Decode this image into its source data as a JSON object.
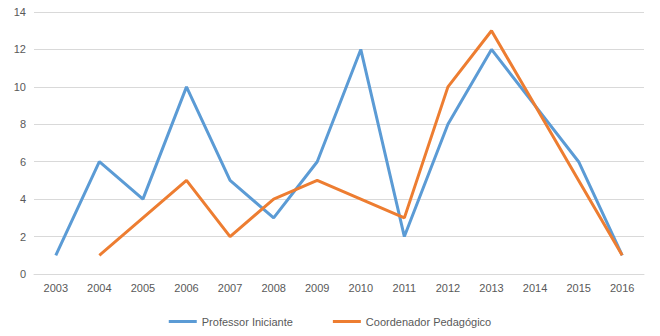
{
  "chart_data": {
    "type": "line",
    "categories": [
      "2003",
      "2004",
      "2005",
      "2006",
      "2007",
      "2008",
      "2009",
      "2010",
      "2011",
      "2012",
      "2013",
      "2014",
      "2015",
      "2016"
    ],
    "series": [
      {
        "name": "Professor Iniciante",
        "color": "#5b9bd5",
        "values": [
          1,
          6,
          4,
          10,
          5,
          3,
          6,
          12,
          2,
          8,
          12,
          9,
          6,
          1
        ]
      },
      {
        "name": "Coordenador Pedagógico",
        "color": "#ed7d31",
        "values": [
          null,
          1,
          3,
          5,
          2,
          4,
          5,
          4,
          3,
          10,
          13,
          9,
          5,
          1
        ]
      }
    ],
    "ylim": [
      0,
      14
    ],
    "yticks": [
      0,
      2,
      4,
      6,
      8,
      10,
      12,
      14
    ],
    "grid": true,
    "legend": "bottom"
  }
}
